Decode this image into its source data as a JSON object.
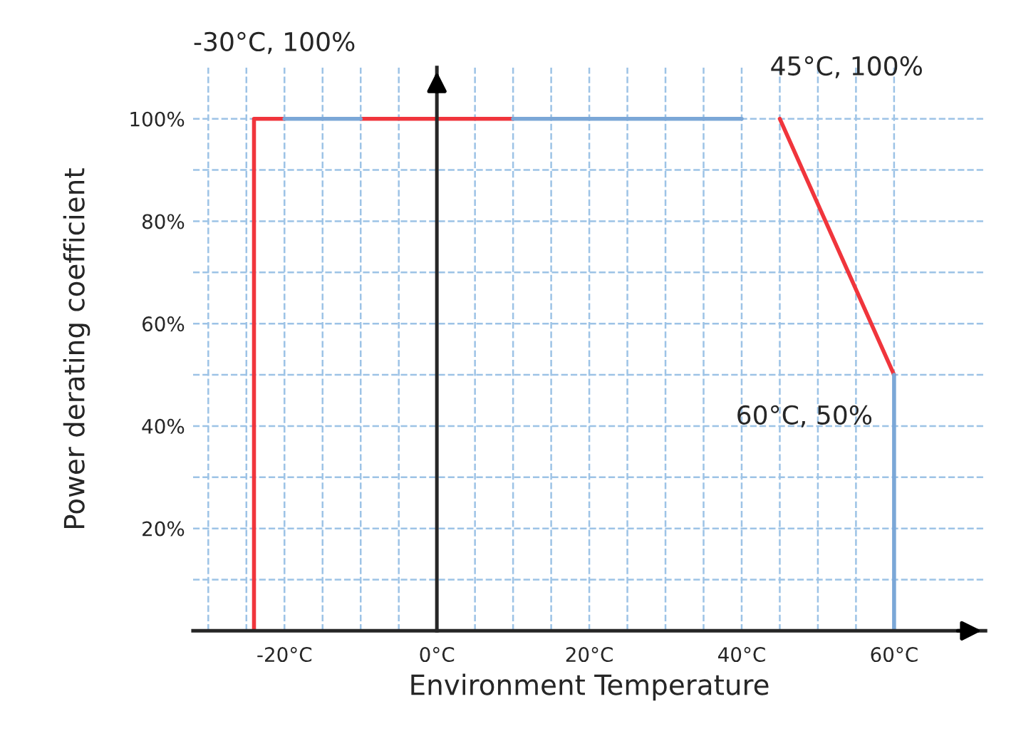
{
  "chart_data": {
    "type": "line",
    "xlabel": "Environment Temperature",
    "ylabel": "Power derating coefficient",
    "series": [
      {
        "color": "#f0353c",
        "x": [
          -24,
          -24,
          -20,
          -15,
          -10,
          10,
          30,
          45,
          60
        ],
        "values": [
          0,
          100,
          100,
          null,
          100,
          100,
          null,
          100,
          50
        ]
      },
      {
        "color": "#7ba7d7",
        "x": [
          -20,
          -10,
          -5,
          10,
          40,
          50,
          60,
          60
        ],
        "values": [
          100,
          100,
          null,
          100,
          100,
          null,
          50,
          0
        ]
      }
    ],
    "xlim": [
      -32,
      72
    ],
    "ylim": [
      0,
      110
    ],
    "xticks": [
      {
        "value": -30,
        "label": null
      },
      {
        "value": -25,
        "label": null
      },
      {
        "value": -20,
        "label": "-20°C"
      },
      {
        "value": -15,
        "label": null
      },
      {
        "value": -10,
        "label": null
      },
      {
        "value": -5,
        "label": null
      },
      {
        "value": 0,
        "label": "0°C"
      },
      {
        "value": 5,
        "label": null
      },
      {
        "value": 10,
        "label": null
      },
      {
        "value": 15,
        "label": null
      },
      {
        "value": 20,
        "label": "20°C"
      },
      {
        "value": 25,
        "label": null
      },
      {
        "value": 30,
        "label": null
      },
      {
        "value": 35,
        "label": null
      },
      {
        "value": 40,
        "label": "40°C"
      },
      {
        "value": 45,
        "label": null
      },
      {
        "value": 50,
        "label": null
      },
      {
        "value": 55,
        "label": null
      },
      {
        "value": 60,
        "label": "60°C"
      }
    ],
    "yticks": [
      {
        "value": 10,
        "label": null
      },
      {
        "value": 20,
        "label": "20%"
      },
      {
        "value": 30,
        "label": null
      },
      {
        "value": 40,
        "label": "40%"
      },
      {
        "value": 50,
        "label": null
      },
      {
        "value": 60,
        "label": "60%"
      },
      {
        "value": 70,
        "label": null
      },
      {
        "value": 80,
        "label": "80%"
      },
      {
        "value": 90,
        "label": null
      },
      {
        "value": 100,
        "label": "100%"
      }
    ],
    "grid": true,
    "line_style": "solid",
    "annotations": [
      "-30°C, 100%",
      {
        "text": "45°C, 100%",
        "x": 45,
        "y": 100
      },
      {
        "text": "60°C, 50%",
        "x": 60,
        "y": 50
      }
    ]
  }
}
